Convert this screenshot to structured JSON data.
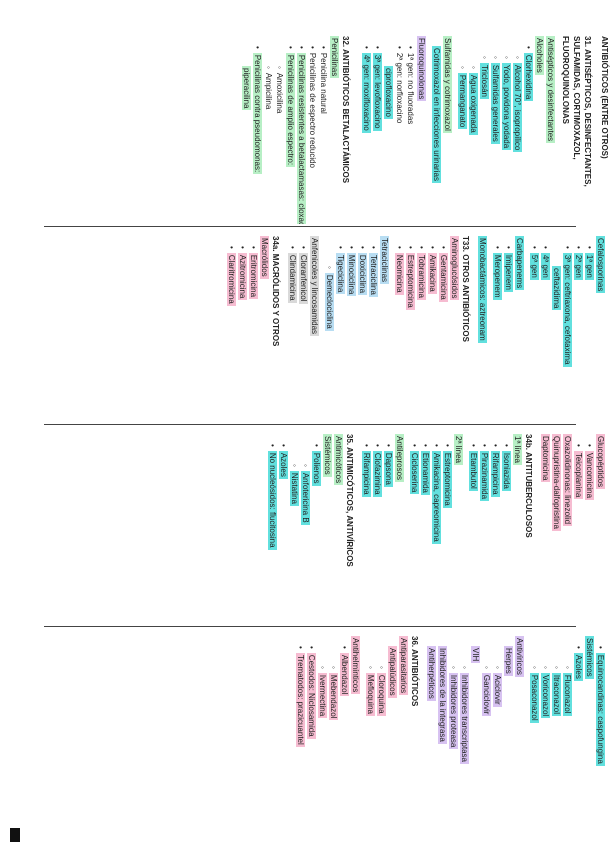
{
  "col1": {
    "title": "ANTIBIÓTICOS (ENTRE OTROS)",
    "s31": {
      "title": "31. ANTISÉPTICOS, DESINFECTANTES, SULFAMIDAS, CORTIMOXAZOL, FLUOROQUINOLONAS",
      "antisepticos_label": "Antisépticos y desinfectantes",
      "alcoholes": "Alcoholes",
      "i1": "Clorhexidina",
      "i2": "Alcohol 70°, isopropílico",
      "i3": "Yodo, povidona yodada",
      "i4": "Sulfamidas generales",
      "i5": "Triclosán",
      "sub1": "Agua oxigenada",
      "sub2": "Permanganato",
      "sulfamidas_label": "Sulfamidas y cotrimoxazol",
      "cotrimoxazol": "Cotrimoxazol en infecciones urinarias",
      "fluoro_label": "Fluoroquinolonas",
      "f1": "1ª gen: no fluoradas",
      "f2": "2ª gen: norfloxacino",
      "f2b": "ciprofloxacino",
      "f3": "3ª gen: levofloxacino",
      "f4": "4ª gen: moxifloxacino"
    },
    "s32": {
      "title": "32. ANTIBIÓTICOS BETALACTÁMICOS",
      "penicilinas_label": "Penicilinas",
      "p1": "Penicilina natural",
      "p2": "Penicilinas de espectro reducido",
      "p3": "Penicilinas resistentes a betalactamasas: cloxacilina",
      "p4": "Penicilinas de amplio espectro:",
      "p4a": "Amoxicilina",
      "p4b": "Ampicilina",
      "p5": "Penicilinas contra pseudomonas:",
      "p5a": "piperacilina"
    }
  },
  "col2": {
    "cefalosporinas_label": "Cefalosporinas",
    "c1": "1ª gen",
    "c2": "2ª gen",
    "c3": "3ª gen: ceftriaxona, cefotaxima",
    "c3b": "ceftazidima",
    "c4": "4ª gen",
    "c5": "5ª gen",
    "carbapenems_label": "Carbapenems",
    "cb1": "Imipenem",
    "cb2": "Meropenem",
    "monobactamicos": "Monobactámicos: aztreonam",
    "s33_title": "T33. OTROS ANTIBIÓTICOS",
    "aminoglucosidos_label": "Aminoglucósidos",
    "a1": "Gentamicina",
    "a2": "Amikacina",
    "a3": "Tobramicina",
    "a4": "Estreptomicina",
    "a5": "Neomicina",
    "tetraciclinas_label": "Tetraciclinas",
    "t1": "Tetraciclina",
    "t2": "Doxiciclina",
    "t3": "Minociclina",
    "t4": "Tigeciclina",
    "t5": "Demeclociclina",
    "antilinc_label": "Anfenicoles y lincosamidas",
    "l1": "Cloranfenicol",
    "l2": "Clindamicina",
    "s34_title": "34a. MACRÓLIDOS Y OTROS",
    "macrolidos_label": "Macrólidos",
    "m1": "Eritromicina",
    "m2": "Azitromicina",
    "m3": "Claritromicina"
  },
  "col3": {
    "glucopeptidos_label": "Glucopéptidos",
    "g1": "Vancomicina",
    "g2": "Teicoplanina",
    "oxazolidinonas": "Oxazolidinonas: linezolid",
    "quinupristina": "Quinupristina-dalfopristina",
    "otros": "Daptomicina",
    "s34b_title": "34b. ANTITUBERCULOSOS",
    "primera_label": "1ª línea",
    "pl1": "Isoniazida",
    "pl2": "Rifampicina",
    "pl3": "Pirazinamida",
    "pl4": "Etambutol",
    "segunda_label": "2ª línea",
    "sl1": "Estreptomicina",
    "sl2": "Amikacina, capreomicina",
    "sl3": "Etionamida",
    "sl4": "Cicloserina",
    "antilepra_label": "Antileprosos",
    "al1": "Dapsona",
    "al2": "Clofazimina",
    "al3": "Rifampicina",
    "s35_title": "35. ANTIMICÓTICOS, ANTIVÍRICOS",
    "antimicoticos": "Antimicóticos",
    "sistemicos": "Sistémicos",
    "polienos": "Polienos",
    "po1": "Anfotericina B",
    "po2": "Nistatina",
    "azoles": "Azoles",
    "nonucleosidos": "No nucleósidos: flucitosina"
  },
  "col4": {
    "fungicidas": "Equinocandinas: caspofungina",
    "sistemicos_label": "Sistémicos",
    "azoles_label": "Azoles",
    "az1": "Fluconazol",
    "az2": "Itraconazol",
    "az3": "Voriconazol",
    "az4": "Posaconazol",
    "antiviricos_label": "Antivíricos",
    "herpes": "Herpes",
    "h1": "Aciclovir",
    "h2": "Ganciclovir",
    "vih_label": "VIH",
    "v1": "Inhibidores transcriptasa",
    "v2": "Inhibidores proteasa",
    "inh_label": "Inhibidores de la integrasa",
    "ahipir": "Antiherpéticos",
    "s36_title": "36. ANTIBIÓTICOS",
    "antiparas_label": "Antiparasitarios",
    "antipalud": "Antipalúdicos",
    "ap1": "Cloroquina",
    "ap2": "Mefloquina",
    "antihelm_label": "Antihelmínticos",
    "ah1": "Albendazol",
    "ah2": "Mebendazol",
    "ah3": "Ivermectina",
    "cestodos": "Cestodos: Niclosamida",
    "tremat": "Trematodos: prazicuantel"
  }
}
